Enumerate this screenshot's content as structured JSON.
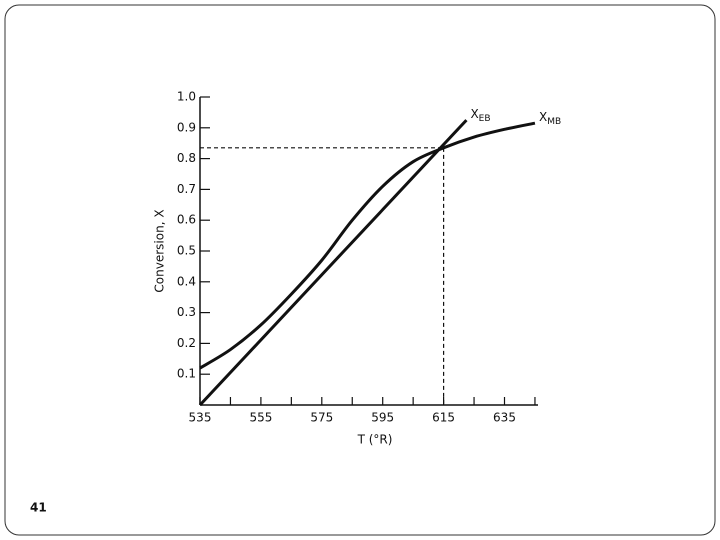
{
  "chart_data": {
    "type": "line",
    "xlabel": "T (°R)",
    "ylabel": "Conversion, X",
    "xlim": [
      535,
      646
    ],
    "ylim": [
      0,
      1
    ],
    "xticks": [
      535,
      555,
      575,
      595,
      615,
      635
    ],
    "xminorticks": [
      545,
      565,
      585,
      605,
      625,
      645
    ],
    "yticks": [
      0.1,
      0.2,
      0.3,
      0.4,
      0.5,
      0.6,
      0.7,
      0.8,
      0.9,
      {
        "value": 1,
        "label": "1.0"
      }
    ],
    "series": [
      {
        "name": "X",
        "name_sub": "EB",
        "color": "#111111",
        "x": [
          535,
          622.5
        ],
        "values": [
          0,
          0.925
        ]
      },
      {
        "name": "X",
        "name_sub": "MB",
        "color": "#111111",
        "x": [
          535,
          545,
          555,
          565,
          575,
          585,
          595,
          605,
          615,
          625,
          635,
          645
        ],
        "values": [
          0.12,
          0.18,
          0.26,
          0.36,
          0.47,
          0.6,
          0.71,
          0.79,
          0.835,
          0.87,
          0.895,
          0.915
        ]
      }
    ],
    "reference_point": {
      "x": 615,
      "y": 0.835
    }
  },
  "slide_number": "41"
}
